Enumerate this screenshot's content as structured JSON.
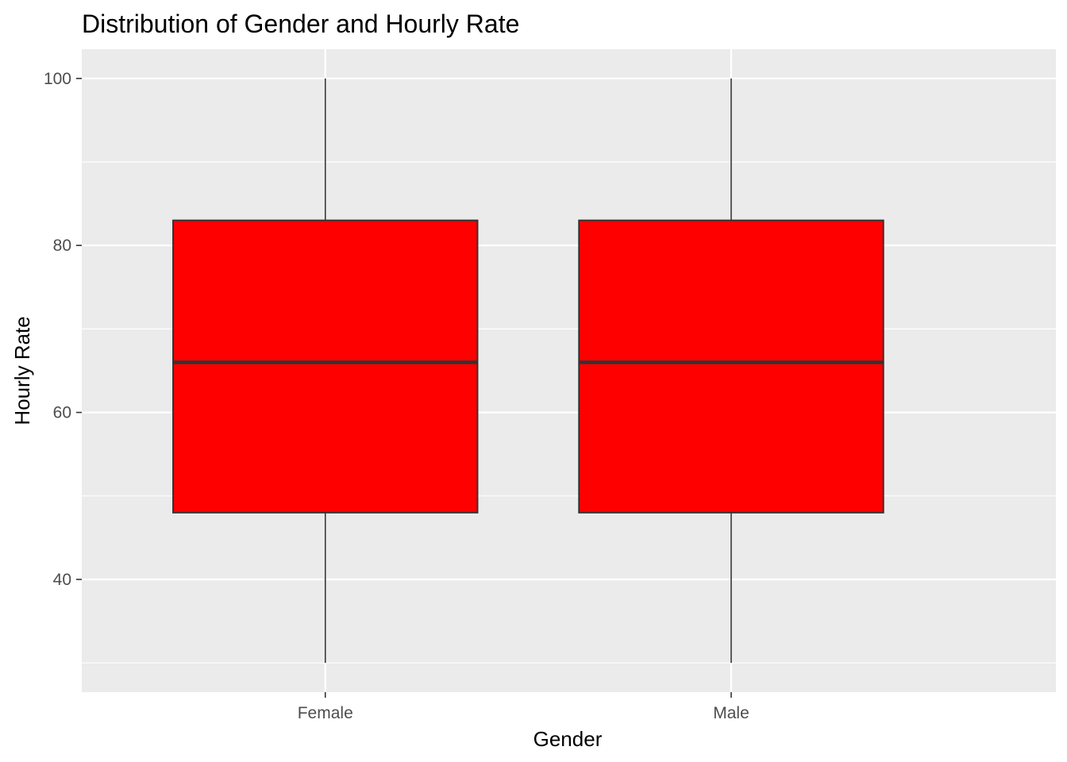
{
  "chart_data": {
    "type": "box",
    "title": "Distribution of Gender and Hourly Rate",
    "xlabel": "Gender",
    "ylabel": "Hourly Rate",
    "categories": [
      "Female",
      "Male"
    ],
    "boxes": [
      {
        "category": "Female",
        "min": 30,
        "q1": 48,
        "median": 66,
        "q3": 83,
        "max": 100
      },
      {
        "category": "Male",
        "min": 30,
        "q1": 48,
        "median": 66,
        "q3": 83,
        "max": 100
      }
    ],
    "ylim": [
      26.5,
      103.5
    ],
    "yticks": [
      40,
      60,
      80,
      100
    ],
    "ytick_labels": [
      "40",
      "60",
      "80",
      "100"
    ],
    "grid": true,
    "colors": {
      "fill": "#ff0000",
      "stroke": "#333333",
      "panel_bg": "#ebebeb",
      "grid": "#ffffff"
    }
  }
}
